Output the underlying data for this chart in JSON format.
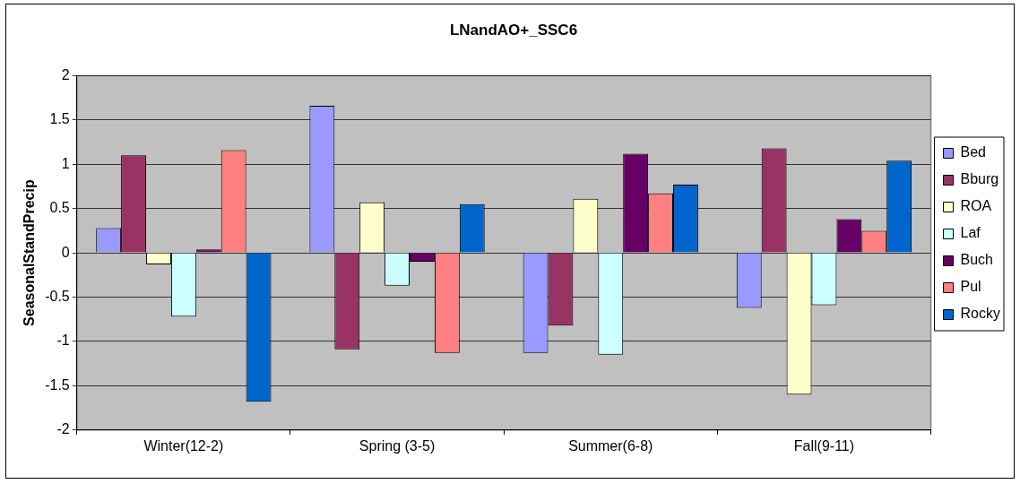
{
  "chart_data": {
    "type": "bar",
    "title": "LNandAO+_SSC6",
    "ylabel": "SeasonalStandPrecip",
    "categories": [
      "Winter(12-2)",
      "Spring (3-5)",
      "Summer(6-8)",
      "Fall(9-11)"
    ],
    "series": [
      {
        "name": "Bed",
        "color": "#9999ff",
        "values": [
          0.28,
          1.66,
          -1.13,
          -0.62
        ]
      },
      {
        "name": "Bburg",
        "color": "#993366",
        "values": [
          1.1,
          -1.09,
          -0.82,
          1.18
        ]
      },
      {
        "name": "ROA",
        "color": "#ffffcc",
        "values": [
          -0.13,
          0.57,
          0.61,
          -1.6
        ]
      },
      {
        "name": "Laf",
        "color": "#ccffff",
        "values": [
          -0.72,
          -0.37,
          -1.15,
          -0.59
        ]
      },
      {
        "name": "Buch",
        "color": "#660066",
        "values": [
          0.04,
          -0.1,
          1.12,
          0.38
        ]
      },
      {
        "name": "Pul",
        "color": "#ff8080",
        "values": [
          1.16,
          -1.13,
          0.67,
          0.25
        ]
      },
      {
        "name": "Rocky",
        "color": "#0066cc",
        "values": [
          -1.68,
          0.55,
          0.77,
          1.04
        ]
      }
    ],
    "ylim": [
      -2,
      2
    ],
    "yticks": [
      -2,
      -1.5,
      -1,
      -0.5,
      0,
      0.5,
      1,
      1.5,
      2
    ],
    "grid": "y",
    "legend": "right"
  }
}
